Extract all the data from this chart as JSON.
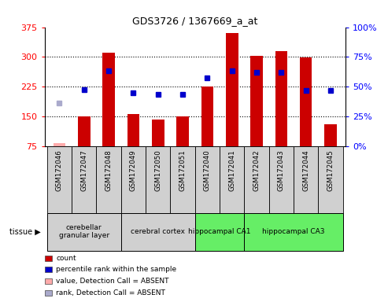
{
  "title": "GDS3726 / 1367669_a_at",
  "samples": [
    "GSM172046",
    "GSM172047",
    "GSM172048",
    "GSM172049",
    "GSM172050",
    "GSM172051",
    "GSM172040",
    "GSM172041",
    "GSM172042",
    "GSM172043",
    "GSM172044",
    "GSM172045"
  ],
  "count_values": [
    83,
    150,
    310,
    157,
    143,
    150,
    225,
    360,
    302,
    315,
    298,
    130
  ],
  "count_absent": [
    true,
    false,
    false,
    false,
    false,
    false,
    false,
    false,
    false,
    false,
    false,
    false
  ],
  "rank_values": [
    185,
    217,
    265,
    210,
    207,
    207,
    247,
    265,
    262,
    262,
    215,
    215
  ],
  "rank_absent": [
    true,
    false,
    false,
    false,
    false,
    false,
    false,
    false,
    false,
    false,
    false,
    false
  ],
  "ylim_left": [
    75,
    375
  ],
  "ylim_right": [
    0,
    100
  ],
  "yticks_left": [
    75,
    150,
    225,
    300,
    375
  ],
  "yticks_right": [
    0,
    25,
    50,
    75,
    100
  ],
  "tissue_groups": [
    {
      "label": "cerebellar\ngranular layer",
      "start": 0,
      "end": 3,
      "color": "#d0d0d0"
    },
    {
      "label": "cerebral cortex",
      "start": 3,
      "end": 6,
      "color": "#d0d0d0"
    },
    {
      "label": "hippocampal CA1",
      "start": 6,
      "end": 8,
      "color": "#66ee66"
    },
    {
      "label": "hippocampal CA3",
      "start": 8,
      "end": 12,
      "color": "#66ee66"
    }
  ],
  "sample_bg_color": "#d0d0d0",
  "bar_color": "#cc0000",
  "bar_absent_color": "#ffaaaa",
  "rank_color": "#0000cc",
  "rank_absent_color": "#aaaacc",
  "bar_width": 0.5,
  "gridlines": [
    150,
    225,
    300
  ],
  "legend_items": [
    {
      "label": "count",
      "color": "#cc0000"
    },
    {
      "label": "percentile rank within the sample",
      "color": "#0000cc"
    },
    {
      "label": "value, Detection Call = ABSENT",
      "color": "#ffaaaa"
    },
    {
      "label": "rank, Detection Call = ABSENT",
      "color": "#aaaacc"
    }
  ]
}
